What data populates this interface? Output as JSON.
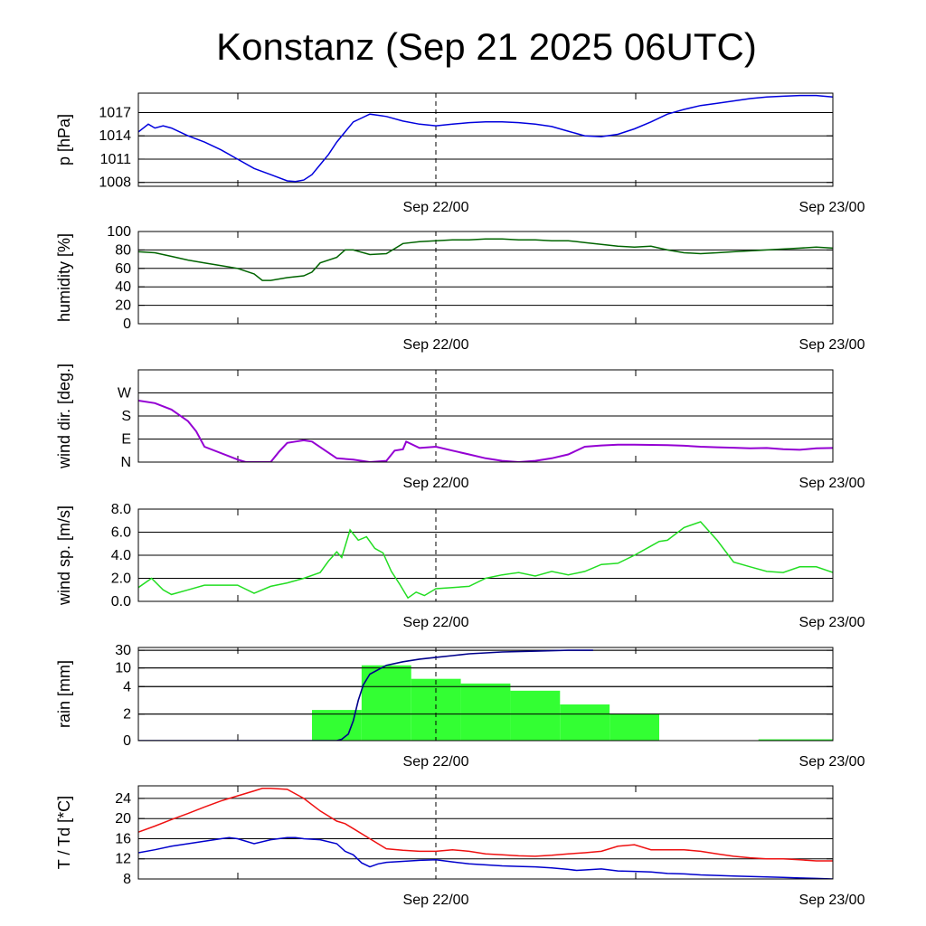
{
  "title": "Konstanz (Sep 21 2025 06UTC)",
  "colors": {
    "pressure": "#0000dd",
    "humidity": "#006400",
    "wind_dir": "#9400d3",
    "wind_speed": "#22dd22",
    "rain_bar": "#33ff33",
    "rain_cum": "#00008b",
    "temperature": "#ee1111",
    "dewpoint": "#0000cc",
    "grid": "#000000"
  },
  "x_labels": [
    "Sep 22/00",
    "Sep 23/00"
  ],
  "chart_data": [
    {
      "id": "pressure",
      "type": "line",
      "ylabel": "p [hPa]",
      "ylim": [
        1007.5,
        1019.5
      ],
      "yticks": [
        1008,
        1011,
        1014,
        1017
      ],
      "ytick_labels": [
        "1008",
        "1011",
        "1014",
        "1017"
      ],
      "x_hours_range": [
        0,
        42
      ],
      "series": [
        {
          "color_key": "pressure",
          "x": [
            0,
            0.6,
            1,
            1.5,
            2,
            3,
            4,
            5,
            6,
            7,
            8,
            9,
            9.5,
            10,
            10.5,
            11,
            11.5,
            12,
            12.5,
            13,
            13.5,
            14,
            15,
            16,
            17,
            18,
            19,
            20,
            21,
            22,
            23,
            24,
            25,
            26,
            27,
            28,
            29,
            30,
            31,
            32,
            33,
            34,
            35,
            36,
            37,
            38,
            39,
            40,
            41,
            42
          ],
          "y": [
            1014.5,
            1015.5,
            1015,
            1015.3,
            1015,
            1014,
            1013.2,
            1012.2,
            1011,
            1009.8,
            1009,
            1008.2,
            1008.1,
            1008.3,
            1009,
            1010.3,
            1011.6,
            1013.2,
            1014.5,
            1015.8,
            1016.3,
            1016.8,
            1016.5,
            1015.9,
            1015.5,
            1015.3,
            1015.5,
            1015.7,
            1015.8,
            1015.8,
            1015.7,
            1015.5,
            1015.2,
            1014.6,
            1014.0,
            1013.9,
            1014.2,
            1014.9,
            1015.8,
            1016.8,
            1017.4,
            1017.9,
            1018.2,
            1018.5,
            1018.8,
            1019.0,
            1019.1,
            1019.2,
            1019.2,
            1019.0
          ]
        }
      ]
    },
    {
      "id": "humidity",
      "type": "line",
      "ylabel": "humidity [%]",
      "ylim": [
        0,
        100
      ],
      "yticks": [
        0,
        20,
        40,
        60,
        80,
        100
      ],
      "ytick_labels": [
        "0",
        "20",
        "40",
        "60",
        "80",
        "100"
      ],
      "x_hours_range": [
        0,
        42
      ],
      "series": [
        {
          "color_key": "humidity",
          "x": [
            0,
            1,
            2,
            3,
            4,
            5,
            6,
            7,
            7.5,
            8,
            9,
            10,
            10.5,
            11,
            12,
            12.5,
            13,
            14,
            15,
            16,
            17,
            18,
            19,
            20,
            21,
            22,
            23,
            24,
            25,
            26,
            27,
            28,
            29,
            30,
            31,
            32,
            33,
            34,
            35,
            36,
            37,
            38,
            39,
            40,
            41,
            42
          ],
          "y": [
            78,
            77,
            73,
            69,
            66,
            63,
            60,
            54,
            47,
            47,
            50,
            52,
            56,
            66,
            72,
            80,
            80,
            75,
            76,
            87,
            89,
            90,
            91,
            91,
            92,
            92,
            91,
            91,
            90,
            90,
            88,
            86,
            84,
            83,
            84,
            80,
            77,
            76,
            77,
            78,
            79,
            80,
            81,
            82,
            83,
            82
          ]
        }
      ]
    },
    {
      "id": "wind_direction",
      "type": "scatter",
      "ylabel": "wind dir. [deg.]",
      "ylim": [
        0,
        360
      ],
      "yticks": [
        0,
        90,
        180,
        270
      ],
      "ytick_labels": [
        "N",
        "E",
        "S",
        "W"
      ],
      "x_hours_range": [
        0,
        42
      ],
      "series": [
        {
          "color_key": "wind_dir",
          "x": [
            0,
            1,
            2,
            3,
            3.5,
            4,
            6,
            6.5,
            7,
            8,
            8.5,
            9,
            9.5,
            10,
            10.5,
            12,
            13,
            14,
            15,
            15.5,
            16,
            16.2,
            17,
            18,
            19,
            20,
            21,
            22,
            23,
            24,
            25,
            26,
            27,
            28,
            29,
            30,
            31,
            32,
            33,
            34,
            35,
            36,
            37,
            38,
            39,
            40,
            41,
            42
          ],
          "y": [
            240,
            230,
            205,
            160,
            120,
            60,
            10,
            0,
            0,
            0,
            40,
            75,
            80,
            85,
            80,
            15,
            10,
            0,
            5,
            45,
            50,
            80,
            55,
            60,
            45,
            30,
            15,
            5,
            0,
            5,
            15,
            30,
            60,
            65,
            68,
            68,
            67,
            66,
            64,
            60,
            58,
            56,
            54,
            55,
            50,
            48,
            54,
            55
          ]
        }
      ]
    },
    {
      "id": "wind_speed",
      "type": "line",
      "ylabel": "wind sp. [m/s]",
      "ylim": [
        0,
        8
      ],
      "yticks": [
        0,
        2,
        4,
        6,
        8
      ],
      "ytick_labels": [
        "0.0",
        "2.0",
        "4.0",
        "6.0",
        "8.0"
      ],
      "x_hours_range": [
        0,
        42
      ],
      "series": [
        {
          "color_key": "wind_speed",
          "x": [
            0,
            0.8,
            1.5,
            2,
            3,
            4,
            5,
            6,
            7,
            8,
            9,
            10,
            11,
            11.5,
            12,
            12.3,
            12.8,
            13.3,
            13.8,
            14.3,
            14.8,
            15.3,
            15.8,
            16.3,
            16.8,
            17.3,
            18,
            19,
            20,
            21,
            22,
            23,
            24,
            25,
            26,
            27,
            28,
            29,
            30,
            31,
            31.5,
            32,
            33,
            34,
            35,
            36,
            37,
            38,
            39,
            40,
            41,
            42
          ],
          "y": [
            1.2,
            2.0,
            1.0,
            0.6,
            1.0,
            1.4,
            1.4,
            1.4,
            0.7,
            1.3,
            1.6,
            2.0,
            2.5,
            3.5,
            4.3,
            3.8,
            6.2,
            5.3,
            5.6,
            4.6,
            4.2,
            2.6,
            1.5,
            0.3,
            0.8,
            0.5,
            1.1,
            1.2,
            1.3,
            2.0,
            2.3,
            2.5,
            2.2,
            2.6,
            2.3,
            2.6,
            3.2,
            3.3,
            4.0,
            4.8,
            5.2,
            5.3,
            6.4,
            6.9,
            5.3,
            3.4,
            3.0,
            2.6,
            2.5,
            3.0,
            3.0,
            2.5
          ]
        }
      ]
    },
    {
      "id": "rain",
      "type": "bar",
      "ylabel": "rain [mm]",
      "y_scale": "nonlinear",
      "yticks": [
        0,
        2,
        4,
        10,
        30
      ],
      "ytick_labels": [
        "0",
        "2",
        "4",
        "10",
        "30"
      ],
      "x_hours_range": [
        0,
        42
      ],
      "bars": [
        {
          "x0": 10.5,
          "x1": 13.5,
          "value": 2.3
        },
        {
          "x0": 13.5,
          "x1": 16.5,
          "value": 13
        },
        {
          "x0": 16.5,
          "x1": 19.5,
          "value": 6.5
        },
        {
          "x0": 19.5,
          "x1": 22.5,
          "value": 5
        },
        {
          "x0": 22.5,
          "x1": 25.5,
          "value": 3.7
        },
        {
          "x0": 25.5,
          "x1": 28.5,
          "value": 2.7
        },
        {
          "x0": 28.5,
          "x1": 31.5,
          "value": 2.0
        },
        {
          "x0": 37.5,
          "x1": 42.0,
          "value": 0.1
        }
      ],
      "cumulative": {
        "color_key": "rain_cum",
        "x": [
          0,
          11,
          11.5,
          12,
          12.3,
          12.7,
          13,
          13.3,
          13.6,
          14,
          15,
          16,
          17,
          18,
          19,
          20,
          22,
          24,
          26,
          27.5
        ],
        "y": [
          0,
          0,
          0,
          0,
          0.1,
          0.5,
          1.5,
          3.0,
          4.5,
          8,
          13,
          17,
          20,
          22,
          24,
          26,
          28,
          29,
          30,
          30
        ]
      }
    },
    {
      "id": "temperature",
      "type": "line",
      "ylabel": "T / Td [*C]",
      "ylim": [
        8,
        26.5
      ],
      "yticks": [
        8,
        12,
        16,
        20,
        24
      ],
      "ytick_labels": [
        "8",
        "12",
        "16",
        "20",
        "24"
      ],
      "x_hours_range": [
        0,
        42
      ],
      "series": [
        {
          "color_key": "temperature",
          "x": [
            0,
            1,
            2,
            3,
            4,
            5,
            6,
            7,
            7.5,
            8,
            9,
            10,
            11,
            12,
            12.5,
            13,
            14,
            15,
            16,
            17,
            18,
            19,
            20,
            21,
            22,
            23,
            24,
            25,
            26,
            27,
            28,
            29,
            30,
            31,
            32,
            33,
            34,
            35,
            36,
            37,
            38,
            39,
            40,
            41,
            42
          ],
          "y": [
            17.3,
            18.5,
            19.8,
            21,
            22.3,
            23.5,
            24.5,
            25.5,
            26,
            26,
            25.8,
            24,
            21.5,
            19.5,
            19,
            18,
            16,
            14,
            13.7,
            13.5,
            13.5,
            13.8,
            13.5,
            13,
            12.8,
            12.6,
            12.5,
            12.7,
            13,
            13.2,
            13.5,
            14.5,
            14.8,
            13.8,
            13.8,
            13.8,
            13.5,
            13,
            12.5,
            12.2,
            12,
            12,
            11.8,
            11.6,
            11.6
          ]
        },
        {
          "color_key": "dewpoint",
          "x": [
            0,
            1,
            2,
            3,
            4,
            5,
            5.5,
            6,
            7,
            8,
            9,
            9.5,
            10,
            11,
            12,
            12.5,
            13,
            13.5,
            14,
            14.5,
            15,
            16,
            17,
            18,
            19,
            20,
            21,
            22,
            23,
            24,
            25,
            26,
            26.5,
            27,
            28,
            29,
            30,
            31,
            32,
            33,
            34,
            35,
            36,
            37,
            38,
            39,
            40,
            41,
            42
          ],
          "y": [
            13.2,
            13.8,
            14.5,
            15.0,
            15.5,
            16.0,
            16.2,
            16.0,
            15.0,
            15.8,
            16.2,
            16.2,
            16.0,
            15.8,
            15.0,
            13.5,
            12.8,
            11.2,
            10.4,
            11.0,
            11.3,
            11.5,
            11.7,
            11.8,
            11.4,
            11.0,
            10.8,
            10.6,
            10.5,
            10.4,
            10.2,
            9.9,
            9.7,
            9.8,
            10.0,
            9.6,
            9.5,
            9.4,
            9.1,
            9.0,
            8.8,
            8.7,
            8.6,
            8.5,
            8.4,
            8.3,
            8.2,
            8.1,
            8.0
          ]
        }
      ]
    }
  ]
}
